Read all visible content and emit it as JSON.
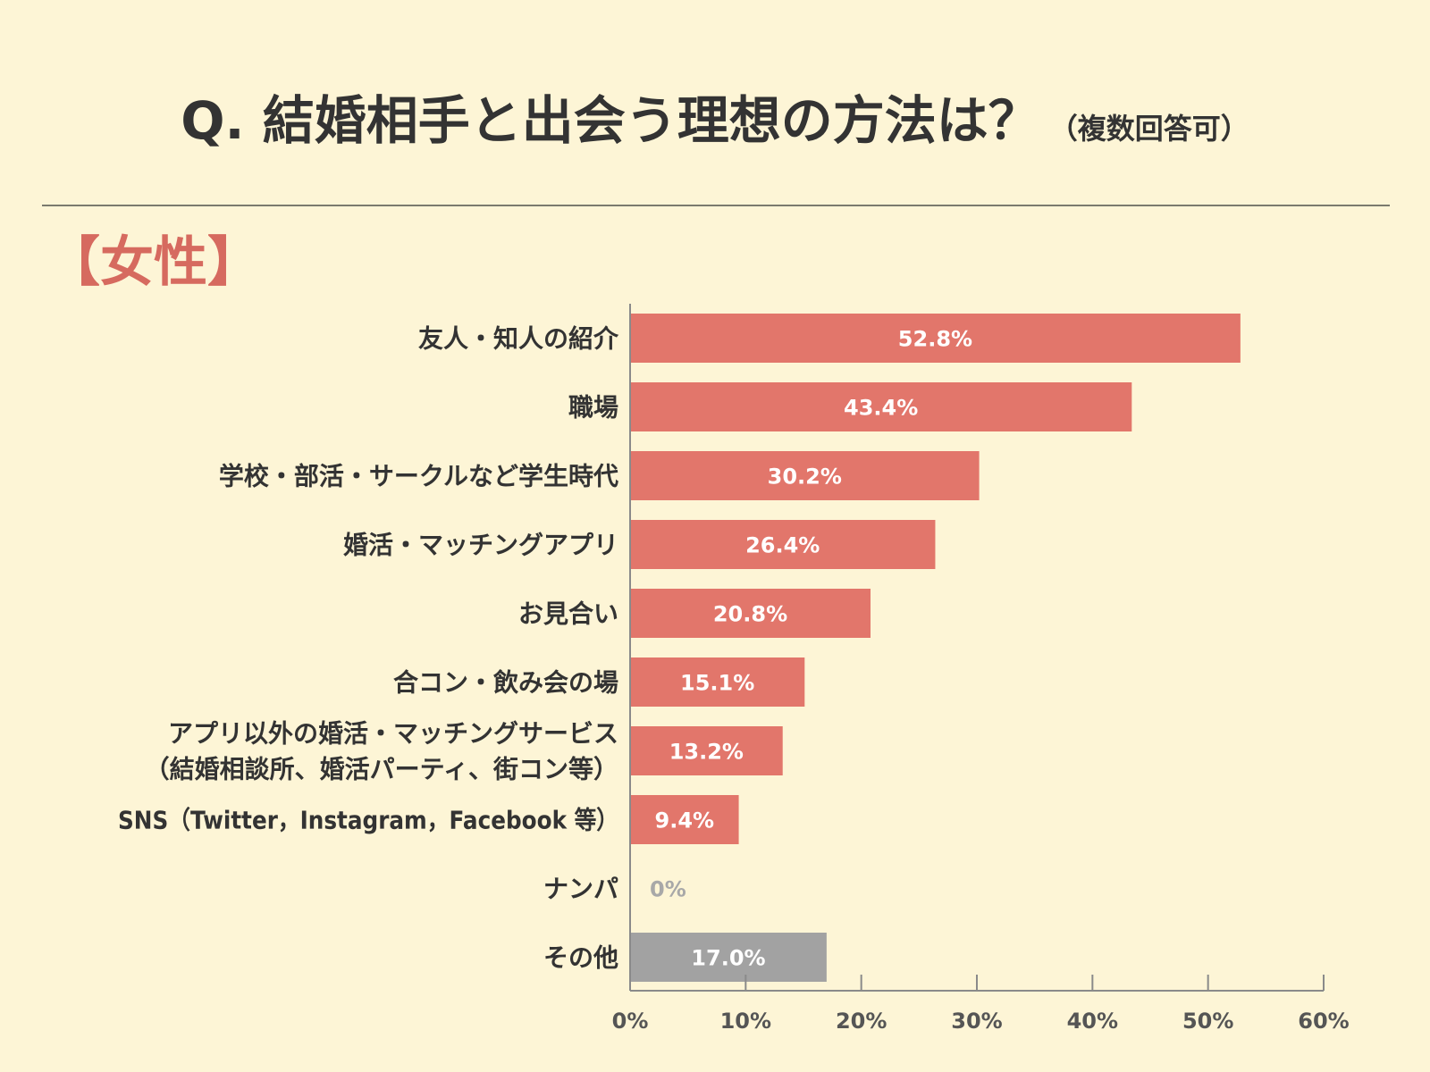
{
  "header": {
    "title": "Q. 結婚相手と出会う理想の方法は？",
    "note": "（複数回答可）",
    "section": "【女性】"
  },
  "colors": {
    "background": "#fdf5d6",
    "bar": "#e2766b",
    "bar_other": "#a2a2a2",
    "zero_label": "#a8a8a8"
  },
  "chart_data": {
    "type": "bar",
    "orientation": "horizontal",
    "title": "Q. 結婚相手と出会う理想の方法は？",
    "xlim": [
      0,
      60
    ],
    "xticks": [
      "0%",
      "10%",
      "20%",
      "30%",
      "40%",
      "50%",
      "60%"
    ],
    "grid": false,
    "unit": "%",
    "categories": [
      [
        "友人・知人の紹介"
      ],
      [
        "職場"
      ],
      [
        "学校・部活・サークルなど学生時代"
      ],
      [
        "婚活・マッチングアプリ"
      ],
      [
        "お見合い"
      ],
      [
        "合コン・飲み会の場"
      ],
      [
        "アプリ以外の婚活・マッチングサービス",
        "（結婚相談所、婚活パーティ、街コン等）"
      ],
      [
        "SNS（Twitter，Instagram，Facebook 等）"
      ],
      [
        "ナンパ"
      ],
      [
        "その他"
      ]
    ],
    "values": [
      52.8,
      43.4,
      30.2,
      26.4,
      20.8,
      15.1,
      13.2,
      9.4,
      0,
      17.0
    ],
    "labels": [
      "52.8%",
      "43.4%",
      "30.2%",
      "26.4%",
      "20.8%",
      "15.1%",
      "13.2%",
      "9.4%",
      "0%",
      "17.0%"
    ],
    "highlight_last": true
  }
}
